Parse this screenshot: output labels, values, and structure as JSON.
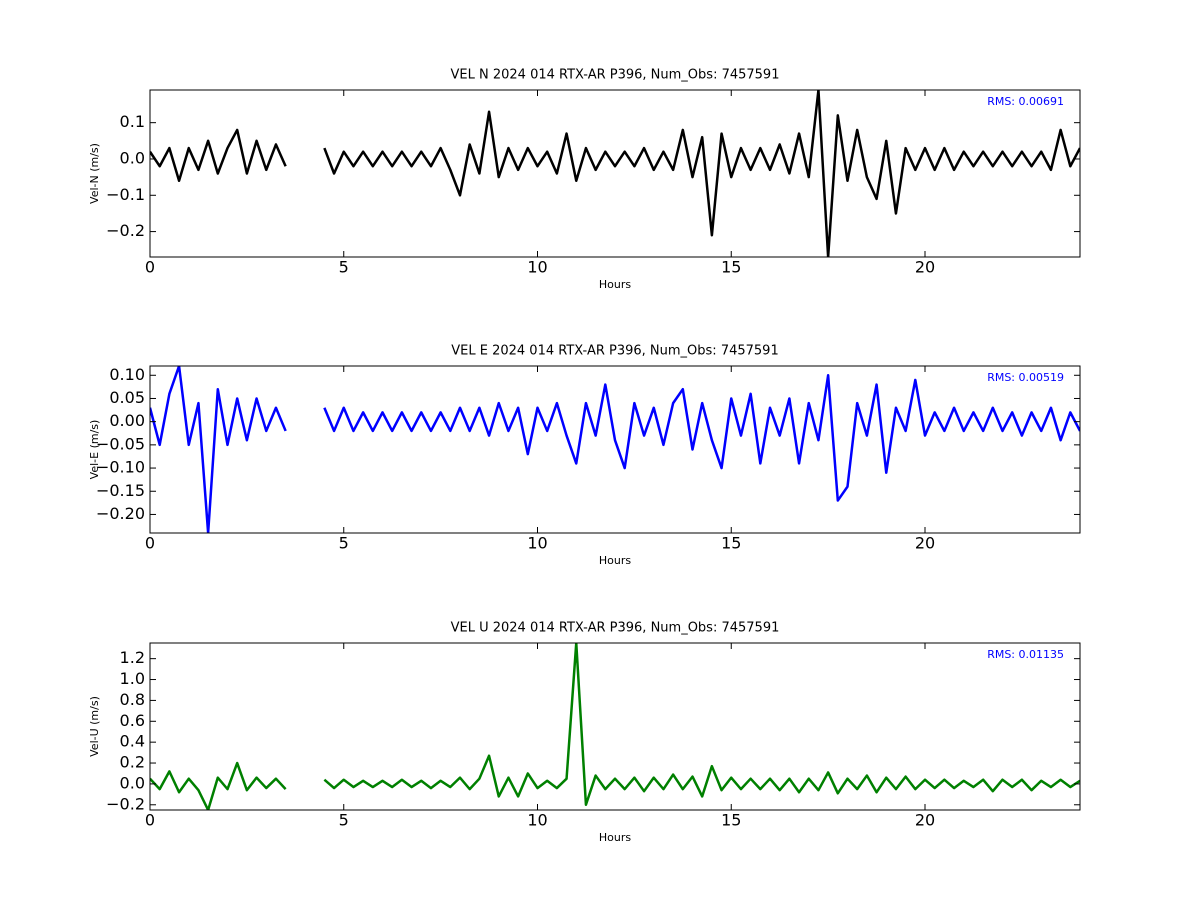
{
  "chart_data": [
    {
      "type": "line",
      "title": "VEL N 2024 014 RTX-AR  P396, Num_Obs: 7457591",
      "xlabel": "Hours",
      "ylabel": "Vel-N (m/s)",
      "annotation": "RMS:  0.00691",
      "color": "#000000",
      "x": [
        0,
        0.25,
        0.5,
        0.75,
        1,
        1.25,
        1.5,
        1.75,
        2,
        2.25,
        2.5,
        2.75,
        3,
        3.25,
        3.5,
        4,
        4.5,
        4.75,
        5,
        5.25,
        5.5,
        5.75,
        6,
        6.25,
        6.5,
        6.75,
        7,
        7.25,
        7.5,
        7.75,
        8,
        8.25,
        8.5,
        8.75,
        9,
        9.25,
        9.5,
        9.75,
        10,
        10.25,
        10.5,
        10.75,
        11,
        11.25,
        11.5,
        11.75,
        12,
        12.25,
        12.5,
        12.75,
        13,
        13.25,
        13.5,
        13.75,
        14,
        14.25,
        14.5,
        14.75,
        15,
        15.25,
        15.5,
        15.75,
        16,
        16.25,
        16.5,
        16.75,
        17,
        17.25,
        17.5,
        17.75,
        18,
        18.25,
        18.5,
        18.75,
        19,
        19.25,
        19.5,
        19.75,
        20,
        20.25,
        20.5,
        20.75,
        21,
        21.25,
        21.5,
        21.75,
        22,
        22.25,
        22.5,
        22.75,
        23,
        23.25,
        23.5,
        23.75,
        24
      ],
      "values": [
        0.02,
        -0.02,
        0.03,
        -0.06,
        0.03,
        -0.03,
        0.05,
        -0.04,
        0.03,
        0.08,
        -0.04,
        0.05,
        -0.03,
        0.04,
        -0.02,
        null,
        0.03,
        -0.04,
        0.02,
        -0.02,
        0.02,
        -0.02,
        0.02,
        -0.02,
        0.02,
        -0.02,
        0.02,
        -0.02,
        0.03,
        -0.03,
        -0.1,
        0.04,
        -0.04,
        0.13,
        -0.05,
        0.03,
        -0.03,
        0.03,
        -0.02,
        0.02,
        -0.04,
        0.07,
        -0.06,
        0.03,
        -0.03,
        0.02,
        -0.02,
        0.02,
        -0.02,
        0.03,
        -0.03,
        0.02,
        -0.03,
        0.08,
        -0.05,
        0.06,
        -0.21,
        0.07,
        -0.05,
        0.03,
        -0.03,
        0.03,
        -0.03,
        0.04,
        -0.04,
        0.07,
        -0.05,
        0.19,
        -0.27,
        0.12,
        -0.06,
        0.08,
        -0.05,
        -0.11,
        0.05,
        -0.15,
        0.03,
        -0.03,
        0.03,
        -0.03,
        0.03,
        -0.03,
        0.02,
        -0.02,
        0.02,
        -0.02,
        0.02,
        -0.02,
        0.02,
        -0.02,
        0.02,
        -0.03,
        0.08,
        -0.02,
        0.03
      ],
      "xlim": [
        0,
        24
      ],
      "xticks": [
        0,
        5,
        10,
        15,
        20
      ],
      "ylim": [
        -0.27,
        0.19
      ],
      "yticks": [
        {
          "value": -0.2,
          "label": "−0.2"
        },
        {
          "value": -0.1,
          "label": "−0.1"
        },
        {
          "value": 0,
          "label": "0.0"
        },
        0.1
      ]
    },
    {
      "type": "line",
      "title": "VEL E 2024 014 RTX-AR  P396, Num_Obs: 7457591",
      "xlabel": "Hours",
      "ylabel": "Vel-E (m/s)",
      "annotation": "RMS:  0.00519",
      "color": "#0000ff",
      "x": [
        0,
        0.25,
        0.5,
        0.75,
        1,
        1.25,
        1.5,
        1.75,
        2,
        2.25,
        2.5,
        2.75,
        3,
        3.25,
        3.5,
        4,
        4.5,
        4.75,
        5,
        5.25,
        5.5,
        5.75,
        6,
        6.25,
        6.5,
        6.75,
        7,
        7.25,
        7.5,
        7.75,
        8,
        8.25,
        8.5,
        8.75,
        9,
        9.25,
        9.5,
        9.75,
        10,
        10.25,
        10.5,
        10.75,
        11,
        11.25,
        11.5,
        11.75,
        12,
        12.25,
        12.5,
        12.75,
        13,
        13.25,
        13.5,
        13.75,
        14,
        14.25,
        14.5,
        14.75,
        15,
        15.25,
        15.5,
        15.75,
        16,
        16.25,
        16.5,
        16.75,
        17,
        17.25,
        17.5,
        17.75,
        18,
        18.25,
        18.5,
        18.75,
        19,
        19.25,
        19.5,
        19.75,
        20,
        20.25,
        20.5,
        20.75,
        21,
        21.25,
        21.5,
        21.75,
        22,
        22.25,
        22.5,
        22.75,
        23,
        23.25,
        23.5,
        23.75,
        24
      ],
      "values": [
        0.03,
        -0.05,
        0.06,
        0.12,
        -0.05,
        0.04,
        -0.24,
        0.07,
        -0.05,
        0.05,
        -0.04,
        0.05,
        -0.02,
        0.03,
        -0.02,
        null,
        0.03,
        -0.02,
        0.03,
        -0.02,
        0.02,
        -0.02,
        0.02,
        -0.02,
        0.02,
        -0.02,
        0.02,
        -0.02,
        0.02,
        -0.02,
        0.03,
        -0.02,
        0.03,
        -0.03,
        0.04,
        -0.02,
        0.03,
        -0.07,
        0.03,
        -0.02,
        0.04,
        -0.03,
        -0.09,
        0.04,
        -0.03,
        0.08,
        -0.04,
        -0.1,
        0.04,
        -0.03,
        0.03,
        -0.05,
        0.04,
        0.07,
        -0.06,
        0.04,
        -0.04,
        -0.1,
        0.05,
        -0.03,
        0.06,
        -0.09,
        0.03,
        -0.03,
        0.05,
        -0.09,
        0.04,
        -0.04,
        0.1,
        -0.17,
        -0.14,
        0.04,
        -0.03,
        0.08,
        -0.11,
        0.03,
        -0.02,
        0.09,
        -0.03,
        0.02,
        -0.02,
        0.03,
        -0.02,
        0.02,
        -0.02,
        0.03,
        -0.02,
        0.02,
        -0.03,
        0.02,
        -0.02,
        0.03,
        -0.04,
        0.02,
        -0.02
      ],
      "xlim": [
        0,
        24
      ],
      "xticks": [
        0,
        5,
        10,
        15,
        20
      ],
      "ylim": [
        -0.24,
        0.12
      ],
      "yticks": [
        {
          "value": -0.2,
          "label": "−0.20"
        },
        {
          "value": -0.15,
          "label": "−0.15"
        },
        {
          "value": -0.1,
          "label": "−0.10"
        },
        {
          "value": -0.05,
          "label": "−0.05"
        },
        {
          "value": 0,
          "label": "0.00"
        },
        0.05,
        {
          "value": 0.1,
          "label": "0.10"
        }
      ]
    },
    {
      "type": "line",
      "title": "VEL U 2024 014 RTX-AR  P396, Num_Obs: 7457591",
      "xlabel": "Hours",
      "ylabel": "Vel-U (m/s)",
      "annotation": "RMS:  0.01135",
      "color": "#008000",
      "x": [
        0,
        0.25,
        0.5,
        0.75,
        1,
        1.25,
        1.5,
        1.75,
        2,
        2.25,
        2.5,
        2.75,
        3,
        3.25,
        3.5,
        4,
        4.5,
        4.75,
        5,
        5.25,
        5.5,
        5.75,
        6,
        6.25,
        6.5,
        6.75,
        7,
        7.25,
        7.5,
        7.75,
        8,
        8.25,
        8.5,
        8.75,
        9,
        9.25,
        9.5,
        9.75,
        10,
        10.25,
        10.5,
        10.75,
        11,
        11.25,
        11.5,
        11.75,
        12,
        12.25,
        12.5,
        12.75,
        13,
        13.25,
        13.5,
        13.75,
        14,
        14.25,
        14.5,
        14.75,
        15,
        15.25,
        15.5,
        15.75,
        16,
        16.25,
        16.5,
        16.75,
        17,
        17.25,
        17.5,
        17.75,
        18,
        18.25,
        18.5,
        18.75,
        19,
        19.25,
        19.5,
        19.75,
        20,
        20.25,
        20.5,
        20.75,
        21,
        21.25,
        21.5,
        21.75,
        22,
        22.25,
        22.5,
        22.75,
        23,
        23.25,
        23.5,
        23.75,
        24
      ],
      "values": [
        0.05,
        -0.05,
        0.12,
        -0.08,
        0.05,
        -0.06,
        -0.25,
        0.06,
        -0.05,
        0.2,
        -0.06,
        0.06,
        -0.04,
        0.05,
        -0.05,
        null,
        0.04,
        -0.04,
        0.04,
        -0.03,
        0.03,
        -0.03,
        0.03,
        -0.03,
        0.04,
        -0.03,
        0.03,
        -0.04,
        0.03,
        -0.03,
        0.06,
        -0.05,
        0.05,
        0.27,
        -0.12,
        0.06,
        -0.12,
        0.1,
        -0.04,
        0.03,
        -0.04,
        0.05,
        1.35,
        -0.2,
        0.08,
        -0.05,
        0.05,
        -0.05,
        0.06,
        -0.07,
        0.06,
        -0.05,
        0.09,
        -0.05,
        0.07,
        -0.12,
        0.17,
        -0.06,
        0.06,
        -0.05,
        0.05,
        -0.05,
        0.05,
        -0.06,
        0.05,
        -0.08,
        0.05,
        -0.06,
        0.11,
        -0.09,
        0.05,
        -0.05,
        0.08,
        -0.08,
        0.06,
        -0.05,
        0.07,
        -0.05,
        0.04,
        -0.04,
        0.04,
        -0.04,
        0.03,
        -0.03,
        0.04,
        -0.07,
        0.04,
        -0.03,
        0.04,
        -0.06,
        0.03,
        -0.03,
        0.04,
        -0.03,
        0.03
      ],
      "xlim": [
        0,
        24
      ],
      "xticks": [
        0,
        5,
        10,
        15,
        20
      ],
      "ylim": [
        -0.25,
        1.35
      ],
      "yticks": [
        {
          "value": -0.2,
          "label": "−0.2"
        },
        {
          "value": 0,
          "label": "0.0"
        },
        0.2,
        0.4,
        0.6,
        0.8,
        {
          "value": 1,
          "label": "1.0"
        },
        1.2
      ]
    }
  ]
}
